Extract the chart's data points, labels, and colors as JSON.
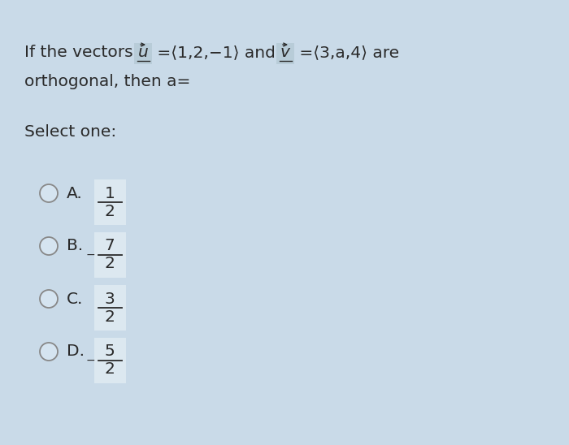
{
  "background_color": "#c9dae8",
  "text_color": "#2a2a2a",
  "fig_width": 7.0,
  "fig_height": 5.48,
  "options": [
    {
      "label": "A.",
      "numerator": "1",
      "denominator": "2",
      "negative": false
    },
    {
      "label": "B.",
      "numerator": "7",
      "denominator": "2",
      "negative": true
    },
    {
      "label": "C.",
      "numerator": "3",
      "denominator": "2",
      "negative": false
    },
    {
      "label": "D.",
      "numerator": "5",
      "denominator": "2",
      "negative": true
    }
  ]
}
